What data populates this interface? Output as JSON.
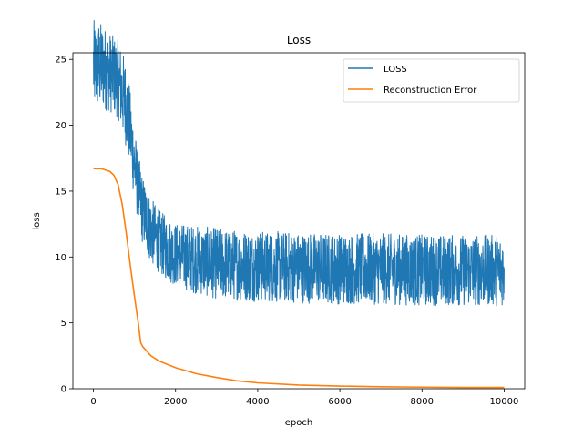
{
  "chart_data": {
    "type": "line",
    "title": "Loss",
    "xlabel": "epoch",
    "ylabel": "loss",
    "xlim": [
      -500,
      10500
    ],
    "ylim": [
      0,
      25.5
    ],
    "xticks": [
      0,
      2000,
      4000,
      6000,
      8000,
      10000
    ],
    "yticks": [
      0,
      5,
      10,
      15,
      20,
      25
    ],
    "grid": false,
    "legend_position": "top-right",
    "series": [
      {
        "name": "LOSS",
        "color": "#1f77b4",
        "style": "noisy",
        "x": [
          0,
          200,
          400,
          600,
          700,
          800,
          900,
          1000,
          1100,
          1200,
          1400,
          1600,
          1800,
          2000,
          2500,
          3000,
          4000,
          5000,
          6000,
          7000,
          8000,
          9000,
          10000
        ],
        "center": [
          24.5,
          24.5,
          24.0,
          23.5,
          22.5,
          21.5,
          19.5,
          17.0,
          15.0,
          13.5,
          12.0,
          11.2,
          10.6,
          10.2,
          9.8,
          9.5,
          9.3,
          9.2,
          9.1,
          9.1,
          9.0,
          9.0,
          9.0
        ],
        "amp": [
          3.5,
          3.3,
          3.0,
          3.0,
          3.2,
          3.2,
          3.0,
          2.8,
          2.7,
          2.6,
          2.5,
          2.4,
          2.4,
          2.4,
          2.6,
          2.7,
          2.7,
          2.7,
          2.7,
          2.7,
          2.7,
          2.7,
          2.7
        ]
      },
      {
        "name": "Reconstruction Error",
        "color": "#ff7f0e",
        "style": "smooth",
        "x": [
          0,
          200,
          400,
          500,
          600,
          700,
          800,
          900,
          1000,
          1100,
          1150,
          1200,
          1400,
          1600,
          2000,
          2500,
          3000,
          3500,
          4000,
          5000,
          6000,
          7000,
          8000,
          9000,
          10000
        ],
        "values": [
          16.7,
          16.7,
          16.5,
          16.2,
          15.5,
          14.0,
          11.8,
          9.3,
          7.0,
          4.8,
          3.5,
          3.2,
          2.5,
          2.1,
          1.6,
          1.15,
          0.85,
          0.6,
          0.45,
          0.28,
          0.2,
          0.15,
          0.12,
          0.1,
          0.1
        ]
      }
    ]
  }
}
